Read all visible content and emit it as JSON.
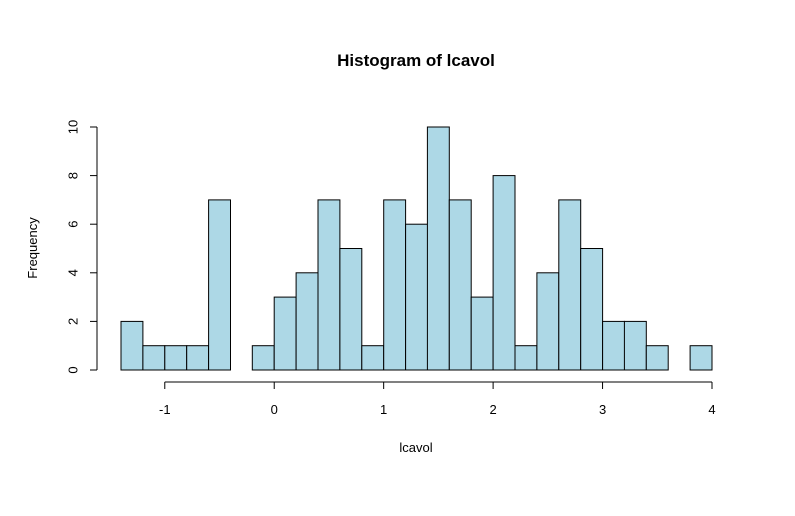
{
  "chart_data": {
    "type": "bar",
    "title": "Histogram of lcavol",
    "xlabel": "lcavol",
    "ylabel": "Frequency",
    "bar_color": "#add8e6",
    "bin_width": 0.2,
    "bins": [
      {
        "x0": -1.4,
        "x1": -1.2,
        "count": 2
      },
      {
        "x0": -1.2,
        "x1": -1.0,
        "count": 1
      },
      {
        "x0": -1.0,
        "x1": -0.8,
        "count": 1
      },
      {
        "x0": -0.8,
        "x1": -0.6,
        "count": 1
      },
      {
        "x0": -0.6,
        "x1": -0.4,
        "count": 7
      },
      {
        "x0": -0.4,
        "x1": -0.2,
        "count": 0
      },
      {
        "x0": -0.2,
        "x1": 0.0,
        "count": 1
      },
      {
        "x0": 0.0,
        "x1": 0.2,
        "count": 3
      },
      {
        "x0": 0.2,
        "x1": 0.4,
        "count": 4
      },
      {
        "x0": 0.4,
        "x1": 0.6,
        "count": 7
      },
      {
        "x0": 0.6,
        "x1": 0.8,
        "count": 5
      },
      {
        "x0": 0.8,
        "x1": 1.0,
        "count": 1
      },
      {
        "x0": 1.0,
        "x1": 1.2,
        "count": 7
      },
      {
        "x0": 1.2,
        "x1": 1.4,
        "count": 6
      },
      {
        "x0": 1.4,
        "x1": 1.6,
        "count": 10
      },
      {
        "x0": 1.6,
        "x1": 1.8,
        "count": 7
      },
      {
        "x0": 1.8,
        "x1": 2.0,
        "count": 3
      },
      {
        "x0": 2.0,
        "x1": 2.2,
        "count": 8
      },
      {
        "x0": 2.2,
        "x1": 2.4,
        "count": 1
      },
      {
        "x0": 2.4,
        "x1": 2.6,
        "count": 4
      },
      {
        "x0": 2.6,
        "x1": 2.8,
        "count": 7
      },
      {
        "x0": 2.8,
        "x1": 3.0,
        "count": 5
      },
      {
        "x0": 3.0,
        "x1": 3.2,
        "count": 2
      },
      {
        "x0": 3.2,
        "x1": 3.4,
        "count": 2
      },
      {
        "x0": 3.4,
        "x1": 3.6,
        "count": 1
      },
      {
        "x0": 3.6,
        "x1": 3.8,
        "count": 0
      },
      {
        "x0": 3.8,
        "x1": 4.0,
        "count": 1
      }
    ],
    "x_ticks": [
      -1,
      0,
      1,
      2,
      3,
      4
    ],
    "x_tick_labels": [
      "-1",
      "0",
      "1",
      "2",
      "3",
      "4"
    ],
    "y_ticks": [
      0,
      2,
      4,
      6,
      8,
      10
    ],
    "y_tick_labels": [
      "0",
      "2",
      "4",
      "6",
      "8",
      "10"
    ],
    "xlim": [
      -1.4,
      4.0
    ],
    "ylim": [
      0,
      10
    ],
    "grid": false,
    "legend": "none"
  }
}
